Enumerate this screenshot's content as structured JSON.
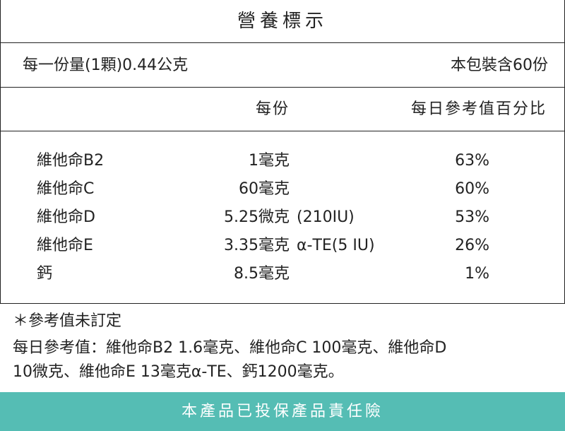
{
  "header": {
    "title": "營養標示",
    "serving_size": "每一份量(1顆)0.44公克",
    "servings_per_package": "本包裝含60份"
  },
  "table": {
    "columns": [
      "每份",
      "每日參考值百分比"
    ],
    "rows": [
      {
        "name": "維他命B2",
        "amount": "1毫克",
        "dv": "63%"
      },
      {
        "name": "維他命C",
        "amount": "60毫克",
        "dv": "60%"
      },
      {
        "name": "維他命D",
        "amount": "5.25微克",
        "note": "(210IU)",
        "dv": "53%"
      },
      {
        "name": "維他命E",
        "amount": "3.35毫克",
        "note": "α-TE(5 IU)",
        "dv": "26%"
      },
      {
        "name": "鈣",
        "amount": "8.5毫克",
        "dv": "1%"
      }
    ]
  },
  "notes": [
    "＊參考值未訂定",
    "每日參考值：維他命B2 1.6毫克、維他命C 100毫克、維他命D",
    "10微克、維他命E 13毫克α-TE、鈣1200毫克。"
  ],
  "footer": {
    "text": "本產品已投保產品責任險"
  }
}
